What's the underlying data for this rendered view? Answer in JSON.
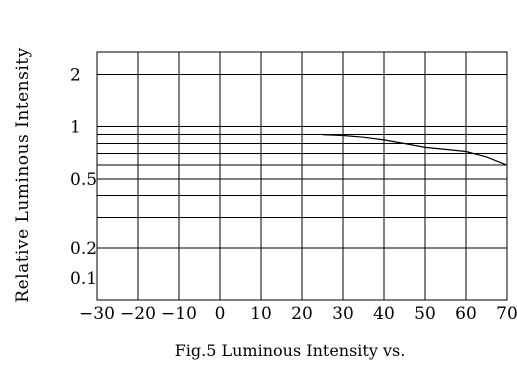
{
  "chart_data": {
    "type": "line",
    "title": "",
    "caption": "Fig.5 Luminous Intensity vs.",
    "ylabel": "Relative Luminous Intensity",
    "xlabel": "",
    "x_ticks": [
      -30,
      -20,
      -10,
      0,
      10,
      20,
      30,
      40,
      50,
      60,
      70
    ],
    "x_tick_labels": [
      "−30",
      "−20",
      "−10",
      "0",
      "10",
      "20",
      "30",
      "40",
      "50",
      "60",
      "70"
    ],
    "y_scale": "log",
    "y_ticks": [
      0.1,
      0.2,
      0.5,
      1,
      2
    ],
    "y_tick_labels": [
      "0.1",
      "0.2",
      "0.5",
      "1",
      "2"
    ],
    "xlim": [
      -30,
      70
    ],
    "ylim": [
      0.1,
      2.7
    ],
    "grid": true,
    "series": [
      {
        "x": [
          25,
          30,
          35,
          40,
          45,
          50,
          55,
          60,
          65,
          70
        ],
        "y": [
          0.9,
          0.89,
          0.87,
          0.84,
          0.8,
          0.76,
          0.74,
          0.72,
          0.67,
          0.6
        ]
      }
    ]
  }
}
